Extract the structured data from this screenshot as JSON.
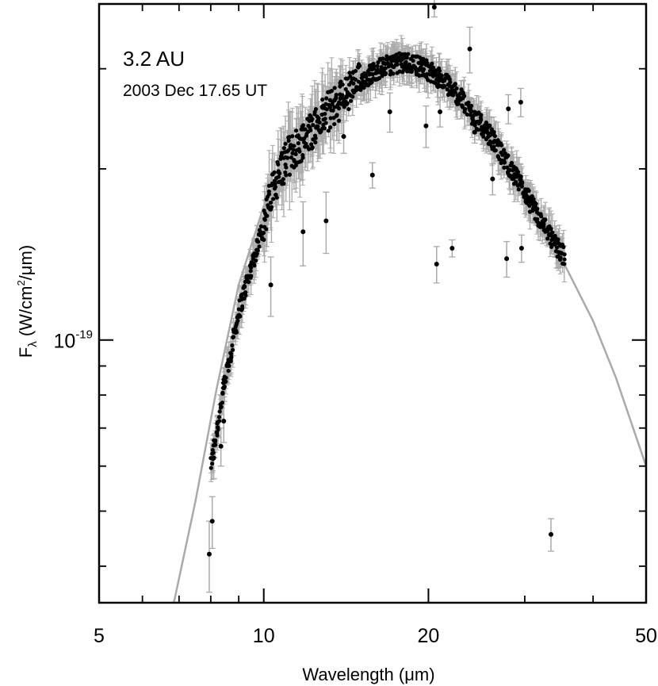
{
  "chart_data": {
    "type": "scatter",
    "title": "",
    "annotations": {
      "distance": "3.2 AU",
      "date": "2003 Dec 17.65 UT"
    },
    "xlabel": {
      "prefix": "Wavelength (",
      "unit_glyph": "μ",
      "suffix": "m)"
    },
    "ylabel": {
      "symbol": "F",
      "subscript": "λ",
      "prefix": " (W/cm",
      "exponent": "2",
      "mid": "/",
      "unit_glyph": "μ",
      "suffix": "m)"
    },
    "x_scale": "log",
    "y_scale": "log",
    "xlim": [
      5,
      50
    ],
    "ylim": [
      3.45e-20,
      3.9e-19
    ],
    "x_tick_labels": [
      {
        "value": 5,
        "text": "5"
      },
      {
        "value": 10,
        "text": "10"
      },
      {
        "value": 20,
        "text": "20"
      },
      {
        "value": 50,
        "text": "50"
      }
    ],
    "y_tick_labels": [
      {
        "value": 1e-19,
        "base": "10",
        "exponent": "-19"
      }
    ],
    "x_minor_ticks": [
      6,
      7,
      8,
      9,
      30,
      40
    ],
    "y_minor_ticks": [
      4e-20,
      5e-20,
      6e-20,
      7e-20,
      8e-20,
      9e-20,
      2e-19,
      3e-19
    ],
    "grid": false,
    "colors": {
      "points": "#000000",
      "error_bars": "#aaaaaa",
      "model": "#aaaaaa"
    },
    "model_curve": {
      "name": "",
      "x": [
        6.85,
        7.5,
        8.2,
        9.0,
        10.0,
        11.0,
        12.0,
        13.0,
        14.5,
        16.0,
        17.0,
        18.5,
        20.0,
        22.0,
        24.0,
        26.0,
        28.0,
        30.0,
        33.0,
        36.0,
        40.0,
        44.0,
        50.0
      ],
      "y": [
        3.45e-20,
        5.2e-20,
        8.2e-20,
        1.25e-19,
        1.72e-19,
        2.05e-19,
        2.3e-19,
        2.5e-19,
        2.72e-19,
        2.9e-19,
        2.98e-19,
        2.96e-19,
        2.9e-19,
        2.75e-19,
        2.55e-19,
        2.3e-19,
        2.05e-19,
        1.82e-19,
        1.55e-19,
        1.32e-19,
        1.08e-19,
        8.6e-20,
        6e-20
      ]
    },
    "series": [
      {
        "name": "",
        "dense_trend": {
          "x": [
            8.0,
            8.5,
            9.0,
            9.5,
            10.0,
            10.5,
            11.0,
            12.0,
            13.0,
            14.0,
            15.0,
            16.0,
            17.0,
            18.0,
            19.0,
            20.0,
            21.0,
            22.0,
            23.0,
            24.0,
            26.0,
            28.0,
            30.0,
            32.0,
            34.0,
            35.5
          ],
          "y": [
            6e-20,
            8.5e-20,
            1.12e-19,
            1.35e-19,
            1.6e-19,
            1.9e-19,
            2.08e-19,
            2.3e-19,
            2.5e-19,
            2.68e-19,
            2.85e-19,
            2.98e-19,
            3.05e-19,
            3.08e-19,
            3.05e-19,
            2.98e-19,
            2.88e-19,
            2.78e-19,
            2.65e-19,
            2.5e-19,
            2.28e-19,
            2.03e-19,
            1.82e-19,
            1.62e-19,
            1.48e-19,
            1.4e-19
          ]
        },
        "outliers": [
          {
            "x": 7.95,
            "y": 4.2e-20,
            "err": 6e-21
          },
          {
            "x": 8.05,
            "y": 4.8e-20,
            "err": 5e-21
          },
          {
            "x": 8.1,
            "y": 6.2e-20,
            "err": 5e-21
          },
          {
            "x": 8.35,
            "y": 6.5e-20,
            "err": 5e-21
          },
          {
            "x": 8.45,
            "y": 7.2e-20,
            "err": 6e-21
          },
          {
            "x": 8.6,
            "y": 9.1e-20,
            "err": 4e-21
          },
          {
            "x": 10.3,
            "y": 1.25e-19,
            "err": 1.5e-20
          },
          {
            "x": 11.8,
            "y": 1.55e-19,
            "err": 2e-20
          },
          {
            "x": 13.0,
            "y": 1.62e-19,
            "err": 2e-20
          },
          {
            "x": 14.0,
            "y": 2.28e-19,
            "err": 1.5e-20
          },
          {
            "x": 15.8,
            "y": 1.95e-19,
            "err": 1e-20
          },
          {
            "x": 17.0,
            "y": 2.52e-19,
            "err": 2e-20
          },
          {
            "x": 19.8,
            "y": 2.38e-19,
            "err": 2e-20
          },
          {
            "x": 20.5,
            "y": 3.85e-19,
            "err": 1.5e-20
          },
          {
            "x": 20.7,
            "y": 1.36e-19,
            "err": 1e-20
          },
          {
            "x": 21.0,
            "y": 2.52e-19,
            "err": 1.5e-20
          },
          {
            "x": 22.1,
            "y": 1.45e-19,
            "err": 5e-21
          },
          {
            "x": 23.8,
            "y": 3.25e-19,
            "err": 3e-20
          },
          {
            "x": 24.3,
            "y": 2.32e-19,
            "err": 1e-20
          },
          {
            "x": 26.2,
            "y": 1.92e-19,
            "err": 1.2e-20
          },
          {
            "x": 27.8,
            "y": 1.39e-19,
            "err": 1e-20
          },
          {
            "x": 28.0,
            "y": 2.55e-19,
            "err": 1.5e-20
          },
          {
            "x": 29.5,
            "y": 2.62e-19,
            "err": 1.5e-20
          },
          {
            "x": 29.6,
            "y": 1.45e-19,
            "err": 8e-21
          },
          {
            "x": 33.5,
            "y": 4.55e-20,
            "err": 3e-21
          }
        ]
      }
    ]
  }
}
